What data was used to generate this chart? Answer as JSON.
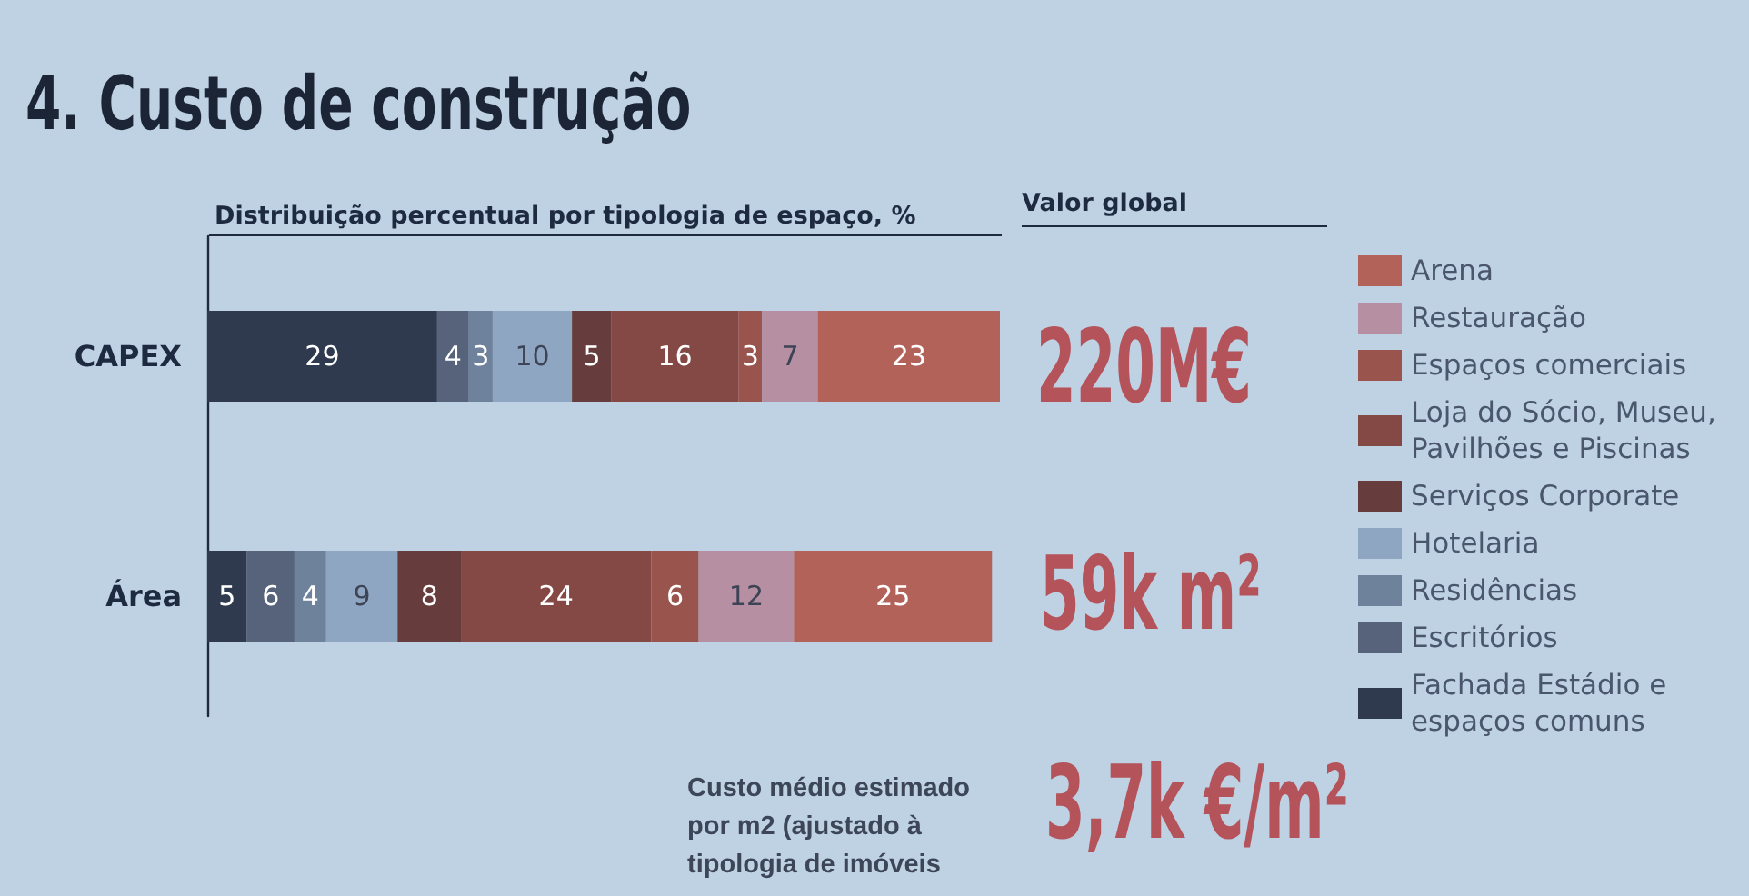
{
  "chart_data": {
    "type": "bar",
    "orientation": "horizontal",
    "stacked": true,
    "title": "4. Custo de construção",
    "subtitle": "Distribuição percentual por tipologia de espaço, %",
    "categories": [
      "CAPEX",
      "Área"
    ],
    "series": [
      {
        "name": "Fachada Estádio e espaços comuns",
        "color": "#2f3a4e",
        "values": [
          29,
          5
        ]
      },
      {
        "name": "Escritórios",
        "color": "#56637a",
        "values": [
          4,
          6
        ]
      },
      {
        "name": "Residências",
        "color": "#6f829c",
        "values": [
          3,
          4
        ]
      },
      {
        "name": "Hotelaria",
        "color": "#8fa6c2",
        "values": [
          10,
          9
        ]
      },
      {
        "name": "Serviços Corporate",
        "color": "#673c3d",
        "values": [
          5,
          8
        ]
      },
      {
        "name": "Loja do Sócio, Museu, Pavilhões e Piscinas",
        "color": "#844944",
        "values": [
          16,
          24
        ]
      },
      {
        "name": "Espaços comerciais",
        "color": "#9a544e",
        "values": [
          3,
          6
        ]
      },
      {
        "name": "Restauração",
        "color": "#b68fa3",
        "values": [
          7,
          12
        ]
      },
      {
        "name": "Arena",
        "color": "#b3625a",
        "values": [
          23,
          25
        ]
      }
    ],
    "xlim": [
      0,
      100
    ],
    "data_labels": true,
    "tick_labels": "y",
    "legend": "right",
    "annotations": [
      "220M€",
      "59k m²",
      "Valor global",
      "Custo médio estimado por m2 (ajustado à tipologia de imóveis",
      "3,7k €/m²"
    ]
  }
}
